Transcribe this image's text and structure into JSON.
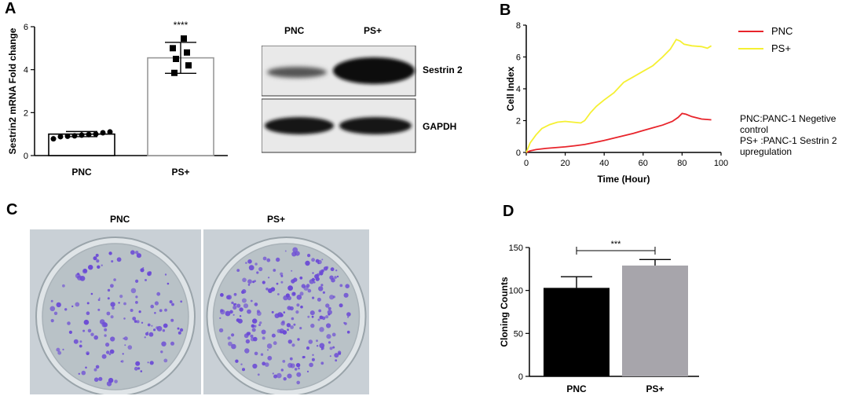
{
  "panels": {
    "a": "A",
    "b": "B",
    "c": "C",
    "d": "D"
  },
  "chart_data": [
    {
      "id": "A-bar",
      "type": "bar",
      "categories": [
        "PNC",
        "PS+"
      ],
      "values": [
        1.0,
        4.55
      ],
      "errors": [
        0.12,
        0.72
      ],
      "points": [
        [
          0.78,
          0.88,
          0.9,
          0.92,
          0.95,
          0.98,
          1.0,
          1.06,
          1.1
        ],
        [
          3.85,
          4.2,
          4.5,
          4.8,
          5.0,
          5.45
        ]
      ],
      "significance": "****",
      "ylabel": "Sestrin2 mRNA Fold change",
      "ylim": [
        0,
        6
      ],
      "yticks": [
        0,
        2,
        4,
        6
      ]
    },
    {
      "id": "B-line",
      "type": "line",
      "xlabel": "Time (Hour)",
      "ylabel": "Cell Index",
      "xlim": [
        0,
        100
      ],
      "ylim": [
        0,
        8
      ],
      "xticks": [
        0,
        20,
        40,
        60,
        80,
        100
      ],
      "yticks": [
        0,
        2,
        4,
        6,
        8
      ],
      "series": [
        {
          "name": "PNC",
          "color": "#e8242b",
          "x": [
            0,
            2,
            5,
            10,
            15,
            20,
            25,
            30,
            35,
            40,
            45,
            50,
            55,
            60,
            65,
            70,
            75,
            78,
            80,
            82,
            85,
            90,
            95
          ],
          "y": [
            0.0,
            0.1,
            0.18,
            0.25,
            0.3,
            0.35,
            0.42,
            0.5,
            0.62,
            0.75,
            0.9,
            1.05,
            1.2,
            1.38,
            1.55,
            1.72,
            1.95,
            2.2,
            2.45,
            2.4,
            2.25,
            2.1,
            2.05
          ]
        },
        {
          "name": "PS+",
          "color": "#f5f032",
          "x": [
            0,
            2,
            5,
            8,
            12,
            16,
            20,
            24,
            28,
            30,
            33,
            36,
            40,
            45,
            50,
            55,
            60,
            65,
            70,
            74,
            77,
            79,
            81,
            85,
            90,
            93,
            95
          ],
          "y": [
            0.0,
            0.6,
            1.1,
            1.5,
            1.75,
            1.9,
            1.95,
            1.9,
            1.85,
            2.0,
            2.5,
            2.9,
            3.3,
            3.75,
            4.4,
            4.75,
            5.1,
            5.45,
            6.0,
            6.5,
            7.1,
            7.0,
            6.8,
            6.7,
            6.65,
            6.55,
            6.7
          ]
        }
      ],
      "legend_position": "right"
    },
    {
      "id": "D-bar",
      "type": "bar",
      "categories": [
        "PNC",
        "PS+"
      ],
      "values": [
        103,
        129
      ],
      "errors": [
        13,
        7
      ],
      "colors": [
        "#000000",
        "#a7a5ab"
      ],
      "significance": "***",
      "ylabel": "Cloning Counts",
      "ylim": [
        0,
        150
      ],
      "yticks": [
        0,
        50,
        100,
        150
      ]
    }
  ],
  "western": {
    "lanes": [
      "PNC",
      "PS+"
    ],
    "bands": [
      "Sestrin 2",
      "GAPDH"
    ]
  },
  "legend_b": {
    "items": [
      "PNC",
      "PS+"
    ]
  },
  "note_b": {
    "line1": "PNC:PANC-1 Negetive",
    "line2": "control",
    "line3": "PS+ :PANC-1 Sestrin 2",
    "line4": "upregulation"
  },
  "colony": {
    "titles": [
      "PNC",
      "PS+"
    ],
    "dish_color": "#b9c2c7",
    "colony_color": "#6b4ad6"
  }
}
